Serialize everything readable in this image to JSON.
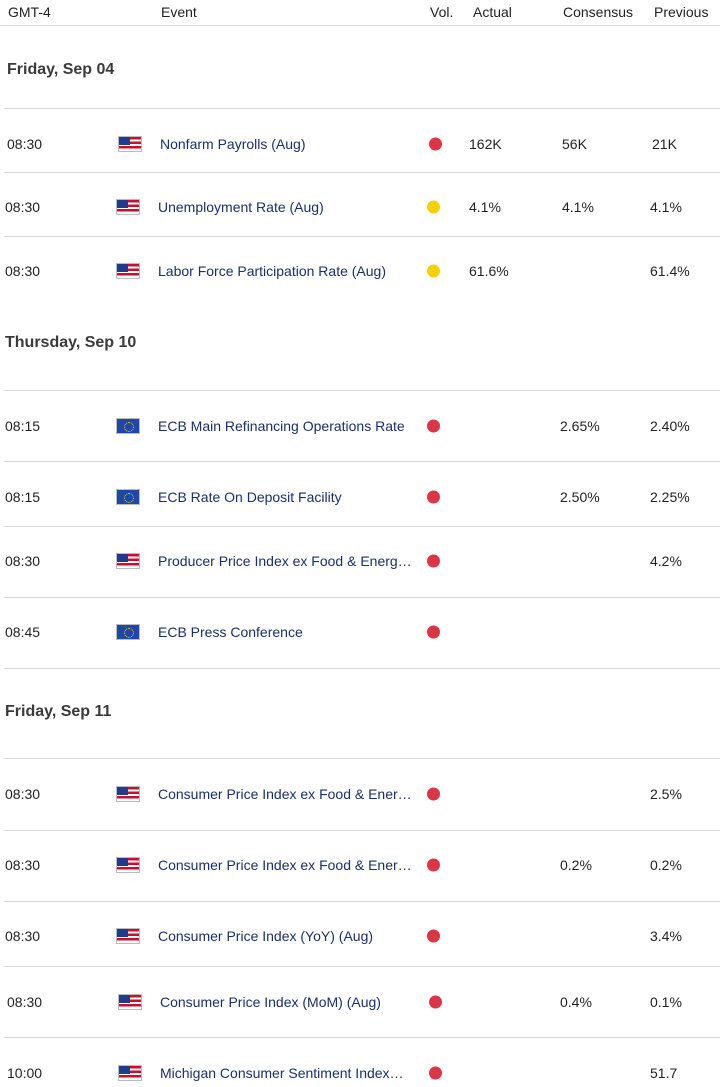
{
  "header": {
    "timezone": "GMT-4",
    "event": "Event",
    "vol": "Vol.",
    "actual": "Actual",
    "consensus": "Consensus",
    "previous": "Previous"
  },
  "colors": {
    "high": "#dc3545",
    "medium": "#f5d000"
  },
  "days": [
    {
      "label": "Friday, Sep 04",
      "events": [
        {
          "time": "08:30",
          "flag": "us-flag-icon",
          "event": "Nonfarm Payrolls (Aug)",
          "vol": "high",
          "actual": "162K",
          "consensus": "56K",
          "previous": "21K"
        },
        {
          "time": "08:30",
          "flag": "us-flag-icon",
          "event": "Unemployment Rate (Aug)",
          "vol": "medium",
          "actual": "4.1%",
          "consensus": "4.1%",
          "previous": "4.1%"
        },
        {
          "time": "08:30",
          "flag": "us-flag-icon",
          "event": "Labor Force Participation Rate (Aug)",
          "vol": "medium",
          "actual": "61.6%",
          "consensus": "",
          "previous": "61.4%"
        }
      ]
    },
    {
      "label": "Thursday, Sep 10",
      "events": [
        {
          "time": "08:15",
          "flag": "eu-flag-icon",
          "event": "ECB Main Refinancing Operations Rate",
          "vol": "high",
          "actual": "",
          "consensus": "2.65%",
          "previous": "2.40%"
        },
        {
          "time": "08:15",
          "flag": "eu-flag-icon",
          "event": "ECB Rate On Deposit Facility",
          "vol": "high",
          "actual": "",
          "consensus": "2.50%",
          "previous": "2.25%"
        },
        {
          "time": "08:30",
          "flag": "us-flag-icon",
          "event": "Producer Price Index ex Food & Energ…",
          "vol": "high",
          "actual": "",
          "consensus": "",
          "previous": "4.2%"
        },
        {
          "time": "08:45",
          "flag": "eu-flag-icon",
          "event": "ECB Press Conference",
          "vol": "high",
          "actual": "",
          "consensus": "",
          "previous": ""
        }
      ]
    },
    {
      "label": "Friday, Sep 11",
      "events": [
        {
          "time": "08:30",
          "flag": "us-flag-icon",
          "event": "Consumer Price Index ex Food & Ener…",
          "vol": "high",
          "actual": "",
          "consensus": "",
          "previous": "2.5%"
        },
        {
          "time": "08:30",
          "flag": "us-flag-icon",
          "event": "Consumer Price Index ex Food & Ener…",
          "vol": "high",
          "actual": "",
          "consensus": "0.2%",
          "previous": "0.2%"
        },
        {
          "time": "08:30",
          "flag": "us-flag-icon",
          "event": "Consumer Price Index (YoY) (Aug)",
          "vol": "high",
          "actual": "",
          "consensus": "",
          "previous": "3.4%"
        },
        {
          "time": "08:30",
          "flag": "us-flag-icon",
          "event": "Consumer Price Index (MoM) (Aug)",
          "vol": "high",
          "actual": "",
          "consensus": "0.4%",
          "previous": "0.1%"
        },
        {
          "time": "10:00",
          "flag": "us-flag-icon",
          "event": "Michigan Consumer Sentiment Index…",
          "vol": "high",
          "actual": "",
          "consensus": "",
          "previous": "51.7"
        }
      ]
    }
  ]
}
